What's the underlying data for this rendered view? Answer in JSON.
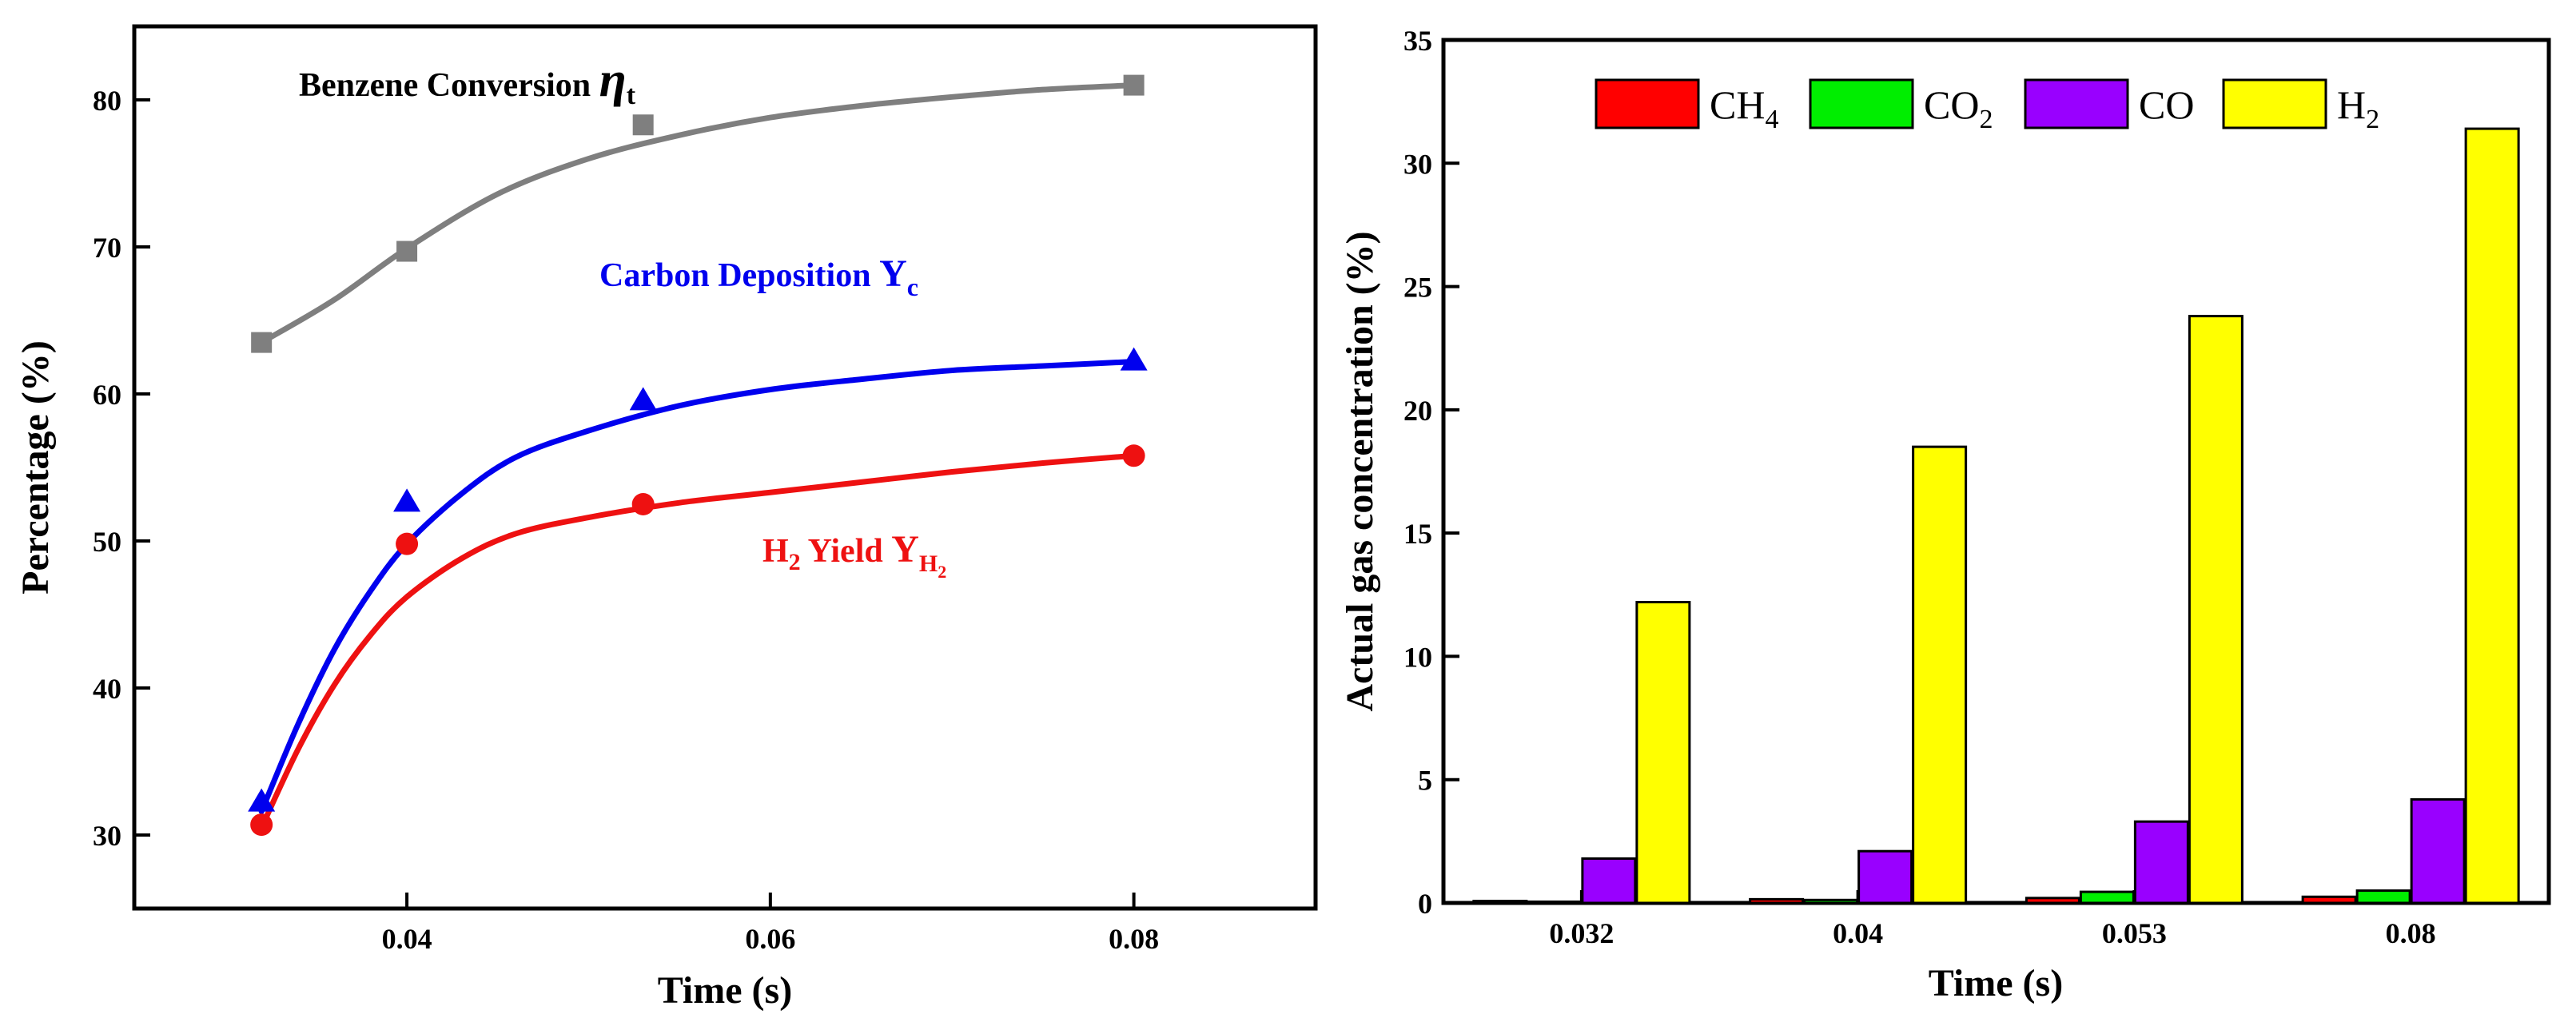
{
  "chart_data": [
    {
      "type": "line",
      "xlabel": "Time (s)",
      "ylabel": "Percentage (%)",
      "xlim": [
        0.025,
        0.09
      ],
      "ylim": [
        25,
        85
      ],
      "xticks": [
        0.04,
        0.06,
        0.08
      ],
      "xtick_labels": [
        "0.04",
        "0.06",
        "0.08"
      ],
      "yticks": [
        30,
        40,
        50,
        60,
        70,
        80
      ],
      "ytick_labels": [
        "30",
        "40",
        "50",
        "60",
        "70",
        "80"
      ],
      "series": [
        {
          "name": "Benzene Conversion ηt",
          "label_main": "Benzene Conversion ",
          "label_symbol": "η",
          "label_sub": "t",
          "color": "#7f7f7f",
          "marker": "square",
          "x": [
            0.032,
            0.04,
            0.053,
            0.08
          ],
          "y": [
            63.5,
            69.7,
            78.3,
            81.0
          ],
          "fit_x": [
            0.032,
            0.036,
            0.04,
            0.045,
            0.05,
            0.055,
            0.06,
            0.065,
            0.07,
            0.075,
            0.08
          ],
          "fit_y": [
            63.5,
            66.4,
            69.9,
            73.6,
            76.0,
            77.6,
            78.8,
            79.6,
            80.2,
            80.7,
            81.0
          ]
        },
        {
          "name": "Carbon Deposition Yc",
          "label_main": "Carbon Deposition ",
          "label_symbol": "Y",
          "label_sub": "c",
          "color": "#0000ee",
          "marker": "triangle",
          "x": [
            0.032,
            0.04,
            0.053,
            0.08
          ],
          "y": [
            32.3,
            52.7,
            59.6,
            62.3
          ],
          "fit_x": [
            0.032,
            0.034,
            0.036,
            0.038,
            0.04,
            0.043,
            0.046,
            0.05,
            0.055,
            0.06,
            0.065,
            0.07,
            0.075,
            0.08
          ],
          "fit_y": [
            31.6,
            37.5,
            42.6,
            46.6,
            49.8,
            53.2,
            55.7,
            57.5,
            59.2,
            60.3,
            61.0,
            61.6,
            61.9,
            62.2
          ]
        },
        {
          "name": "H2 Yield YH2",
          "label_main": "H",
          "label_main_sub": "2",
          "label_mid": " Yield  ",
          "label_symbol": "Y",
          "label_sub": "H",
          "label_subsub": "2",
          "color": "#ee1111",
          "marker": "circle",
          "x": [
            0.032,
            0.04,
            0.053,
            0.08
          ],
          "y": [
            30.7,
            49.8,
            52.5,
            55.8
          ],
          "fit_x": [
            0.032,
            0.034,
            0.036,
            0.038,
            0.04,
            0.043,
            0.046,
            0.05,
            0.055,
            0.06,
            0.065,
            0.07,
            0.075,
            0.08
          ],
          "fit_y": [
            30.5,
            35.8,
            40.2,
            43.6,
            46.2,
            48.8,
            50.5,
            51.6,
            52.6,
            53.3,
            54.0,
            54.7,
            55.3,
            55.8
          ]
        }
      ]
    },
    {
      "type": "bar",
      "xlabel": "Time (s)",
      "ylabel": "Actual gas concentration (%)",
      "ylim": [
        0,
        35
      ],
      "yticks": [
        0,
        5,
        10,
        15,
        20,
        25,
        30,
        35
      ],
      "ytick_labels": [
        "0",
        "5",
        "10",
        "15",
        "20",
        "25",
        "30",
        "35"
      ],
      "categories": [
        "0.032",
        "0.04",
        "0.053",
        "0.08"
      ],
      "series": [
        {
          "name": "CH4",
          "label_main": "CH",
          "label_sub": "4",
          "color": "#ff0000",
          "values": [
            0.08,
            0.15,
            0.2,
            0.25
          ]
        },
        {
          "name": "CO2",
          "label_main": "CO",
          "label_sub": "2",
          "color": "#00ee00",
          "values": [
            0.05,
            0.12,
            0.45,
            0.5
          ]
        },
        {
          "name": "CO",
          "label_main": "CO",
          "label_sub": "",
          "color": "#9900ff",
          "values": [
            1.8,
            2.1,
            3.3,
            4.2
          ]
        },
        {
          "name": "H2",
          "label_main": "H",
          "label_sub": "2",
          "color": "#ffff00",
          "values": [
            12.2,
            18.5,
            23.8,
            31.4
          ]
        }
      ]
    }
  ]
}
